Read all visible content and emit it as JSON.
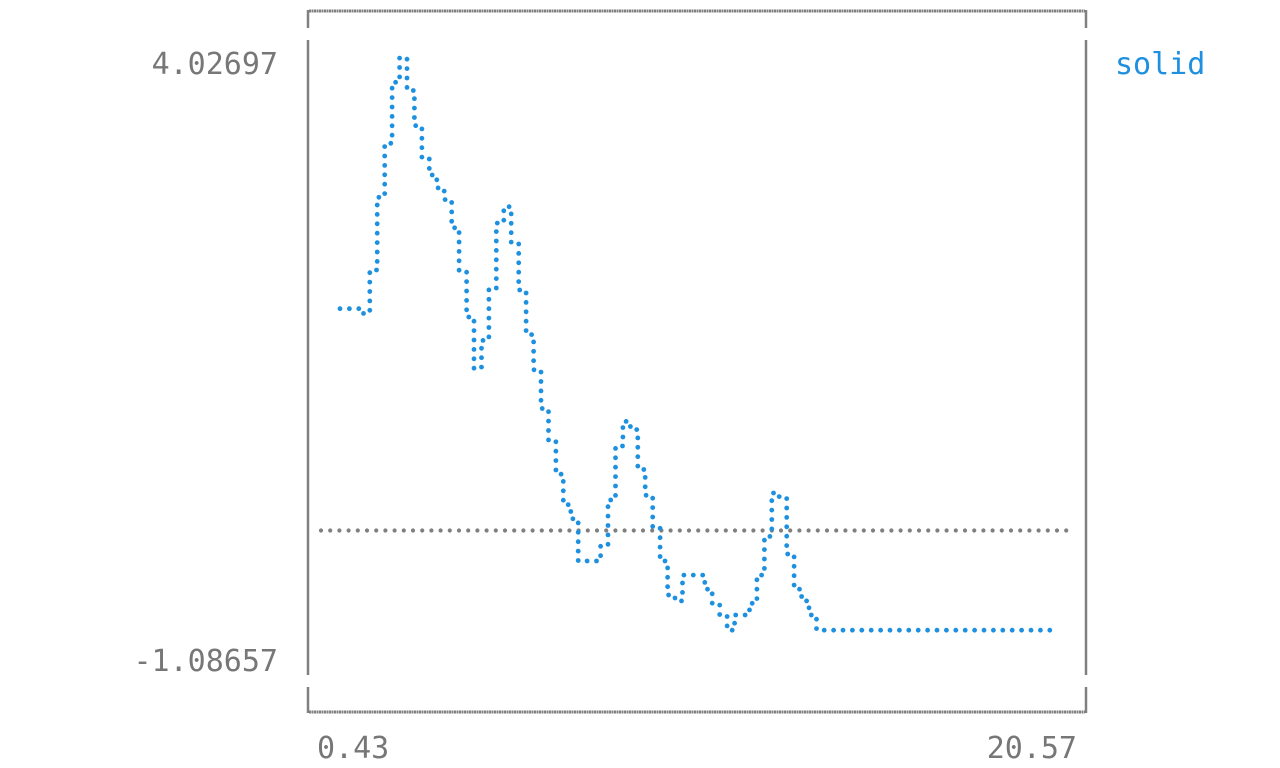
{
  "chart_data": {
    "type": "line",
    "style": "braille-dotted terminal plot",
    "xlim": [
      0.43,
      20.57
    ],
    "ylim": [
      -1.08657,
      4.02697
    ],
    "x_tick_labels": [
      "0.43",
      "20.57"
    ],
    "y_tick_labels": [
      "4.02697",
      "-1.08657"
    ],
    "reference_line": {
      "y": 0,
      "style": "dotted",
      "color": "#808080"
    },
    "legend_position": "top-right",
    "series": [
      {
        "name": "solid",
        "color": "#1e90e0",
        "x": [
          0.43,
          0.85,
          1.06,
          1.27,
          1.48,
          1.69,
          1.9,
          2.11,
          2.32,
          2.53,
          2.74,
          2.95,
          3.16,
          3.37,
          3.58,
          3.79,
          4.0,
          4.21,
          4.42,
          4.63,
          4.84,
          5.05,
          5.26,
          5.47,
          5.68,
          5.89,
          6.1,
          6.31,
          6.52,
          6.73,
          6.94,
          7.15,
          7.36,
          7.57,
          7.78,
          7.99,
          8.2,
          8.41,
          8.62,
          8.83,
          9.04,
          9.25,
          9.46,
          9.67,
          9.88,
          10.09,
          10.3,
          10.51,
          10.72,
          10.93,
          11.14,
          11.35,
          11.56,
          11.77,
          11.98,
          12.19,
          12.4,
          12.61,
          12.82,
          13.03,
          13.24,
          13.45,
          13.66,
          13.87,
          14.08,
          14.29,
          14.5,
          14.71,
          14.92,
          15.13,
          15.34,
          15.55,
          15.76,
          15.97,
          16.18,
          16.39,
          16.6,
          16.81,
          17.02,
          17.23,
          17.44,
          17.65,
          17.86,
          18.07,
          18.28,
          18.49,
          18.7,
          18.91,
          19.12,
          19.33,
          19.54,
          19.75,
          19.96,
          20.17,
          20.38,
          20.57
        ],
        "y": [
          1.89,
          1.89,
          1.85,
          2.22,
          2.84,
          3.3,
          3.82,
          4.03,
          3.75,
          3.45,
          3.18,
          3.03,
          2.92,
          2.82,
          2.58,
          2.21,
          1.82,
          1.38,
          1.62,
          2.06,
          2.62,
          2.76,
          2.45,
          2.05,
          1.67,
          1.37,
          1.04,
          0.76,
          0.48,
          0.22,
          0.1,
          -0.26,
          -0.26,
          -0.26,
          -0.12,
          0.26,
          0.72,
          0.93,
          0.86,
          0.52,
          0.3,
          0.02,
          -0.26,
          -0.55,
          -0.6,
          -0.38,
          -0.38,
          -0.38,
          -0.5,
          -0.62,
          -0.72,
          -0.85,
          -0.72,
          -0.72,
          -0.62,
          -0.38,
          -0.05,
          0.32,
          0.28,
          -0.2,
          -0.5,
          -0.6,
          -0.72,
          -0.85,
          -0.85,
          -0.85,
          -0.85,
          -0.85,
          -0.85,
          -0.85,
          -0.85,
          -0.85,
          -0.85,
          -0.85,
          -0.85,
          -0.85,
          -0.85,
          -0.85,
          -0.85,
          -0.85,
          -0.85,
          -0.85,
          -0.85,
          -0.85,
          -0.85,
          -0.85,
          -0.85,
          -0.85,
          -0.85,
          -0.85,
          -0.85,
          -0.85,
          -0.85,
          -0.85,
          -0.85,
          -0.85
        ]
      }
    ]
  }
}
